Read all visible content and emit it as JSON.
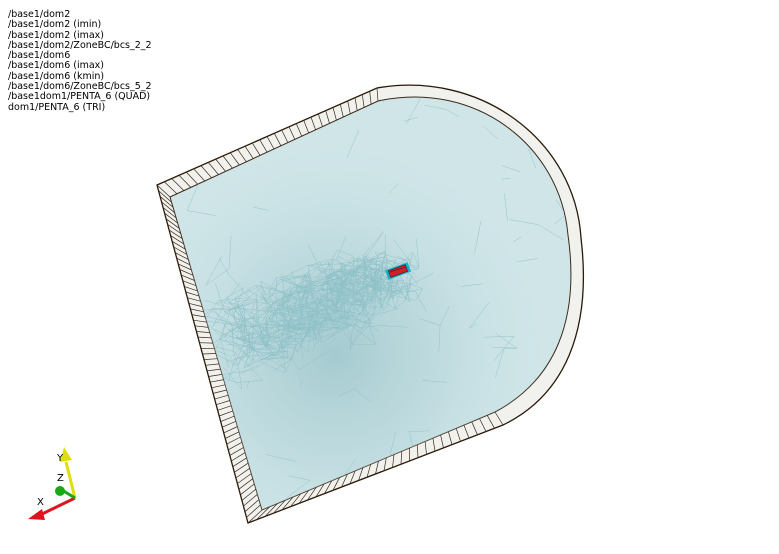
{
  "legend": {
    "entries": [
      "/base1/dom2",
      "/base1/dom2 (imin)",
      "/base1/dom2 (imax)",
      "/base1/dom2/ZoneBC/bcs_2_2",
      "/base1/dom6",
      "/base1/dom6 (imax)",
      "/base1/dom6 (kmin)",
      "/base1/dom6/ZoneBC/bcs_5_2",
      "/base1dom1/PENTA_6 (QUAD)",
      "dom1/PENTA_6 (TRI)"
    ]
  },
  "axes": {
    "x_label": "X",
    "y_label": "Y",
    "z_label": "Z",
    "colors": {
      "x": "#e0141e",
      "y": "#dede10",
      "z": "#18a818"
    }
  },
  "colors": {
    "background": "#ffffff",
    "mesh_fill": "#cfe5e8",
    "mesh_lines": "#8fc1c7",
    "mesh_dense": "#a6cbd0",
    "boundary": "#3a2a1a",
    "outer_edge": "#2a1a0a",
    "obstacle": "#d0202a",
    "obstacle_outline": "#1ab0c8"
  }
}
